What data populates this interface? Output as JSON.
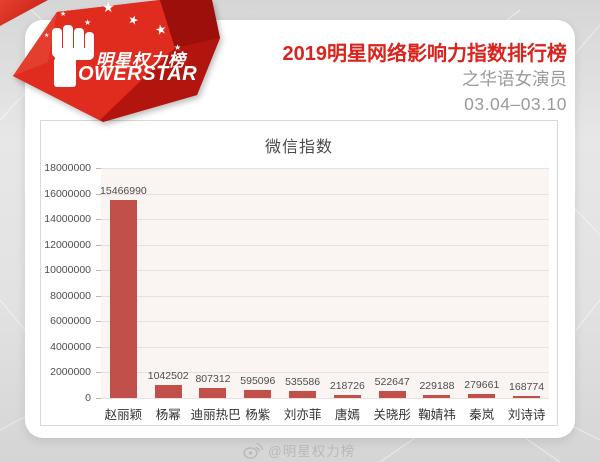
{
  "logo": {
    "brand_cn": "明星权力榜",
    "brand_en": "OWERSTAR",
    "icon": "fist-icon",
    "star_icon": "star-icon"
  },
  "header": {
    "title": "2019明星网络影响力指数排行榜",
    "subtitle": "之华语女演员",
    "date_range": "03.04–03.10"
  },
  "watermark": {
    "icon": "weibo-icon",
    "text": "@明星权力榜"
  },
  "colors": {
    "accent_red": "#d9241e",
    "bar_color": "#c2504a",
    "plot_background": "#faf5f3",
    "card_background": "#ffffff",
    "page_background": "#e0e0e0"
  },
  "chart_data": {
    "type": "bar",
    "title": "微信指数",
    "categories": [
      "赵丽颖",
      "杨幂",
      "迪丽热巴",
      "杨紫",
      "刘亦菲",
      "唐嫣",
      "关晓彤",
      "鞠婧祎",
      "秦岚",
      "刘诗诗"
    ],
    "values": [
      15466990,
      1042502,
      807312,
      595096,
      535586,
      218726,
      522647,
      229188,
      279661,
      168774
    ],
    "xlabel": "",
    "ylabel": "",
    "ylim": [
      0,
      18000000
    ],
    "ytick_labels_top_to_bottom": [
      "18000000",
      "16000000",
      "14000000",
      "12000000",
      "10000000",
      "8000000",
      "6000000",
      "4000000",
      "2000000",
      "0"
    ],
    "grid": true,
    "legend": false,
    "bar_color": "#c2504a",
    "value_labels_shown": true
  }
}
